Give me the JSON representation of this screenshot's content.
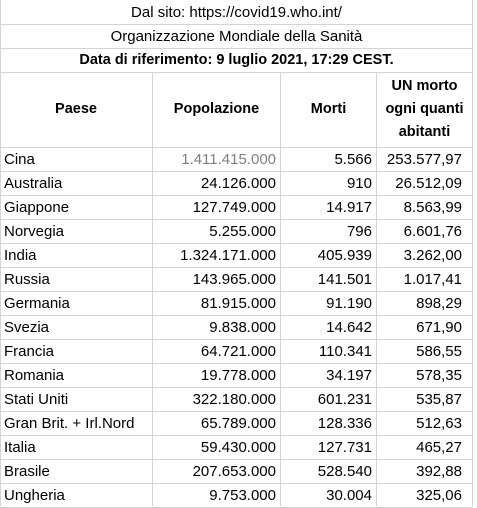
{
  "header": {
    "source_line": "Dal sito: https://covid19.who.int/",
    "organization": "Organizzazione Mondiale della Sanità",
    "reference_date": "Data di riferimento: 9 luglio 2021, 17:29 CEST."
  },
  "columns": {
    "country": "Paese",
    "population": "Popolazione",
    "deaths": "Morti",
    "ratio_line1": "UN morto",
    "ratio_line2": "ogni quanti",
    "ratio_line3": "abitanti"
  },
  "rows": [
    {
      "country": "Cina",
      "population": "1.411.415.000",
      "deaths": "5.566",
      "ratio": "253.577,97"
    },
    {
      "country": "Australia",
      "population": "24.126.000",
      "deaths": "910",
      "ratio": "26.512,09"
    },
    {
      "country": "Giappone",
      "population": "127.749.000",
      "deaths": "14.917",
      "ratio": "8.563,99"
    },
    {
      "country": "Norvegia",
      "population": "5.255.000",
      "deaths": "796",
      "ratio": "6.601,76"
    },
    {
      "country": "India",
      "population": "1.324.171.000",
      "deaths": "405.939",
      "ratio": "3.262,00"
    },
    {
      "country": "Russia",
      "population": "143.965.000",
      "deaths": "141.501",
      "ratio": "1.017,41"
    },
    {
      "country": "Germania",
      "population": "81.915.000",
      "deaths": "91.190",
      "ratio": "898,29"
    },
    {
      "country": "Svezia",
      "population": "9.838.000",
      "deaths": "14.642",
      "ratio": "671,90"
    },
    {
      "country": "Francia",
      "population": "64.721.000",
      "deaths": "110.341",
      "ratio": "586,55"
    },
    {
      "country": "Romania",
      "population": "19.778.000",
      "deaths": "34.197",
      "ratio": "578,35"
    },
    {
      "country": "Stati Uniti",
      "population": "322.180.000",
      "deaths": "601.231",
      "ratio": "535,87"
    },
    {
      "country": "Gran Brit. + Irl.Nord",
      "population": "65.789.000",
      "deaths": "128.336",
      "ratio": "512,63"
    },
    {
      "country": "Italia",
      "population": "59.430.000",
      "deaths": "127.731",
      "ratio": "465,27"
    },
    {
      "country": "Brasile",
      "population": "207.653.000",
      "deaths": "528.540",
      "ratio": "392,88"
    },
    {
      "country": "Ungheria",
      "population": "9.753.000",
      "deaths": "30.004",
      "ratio": "325,06"
    }
  ]
}
